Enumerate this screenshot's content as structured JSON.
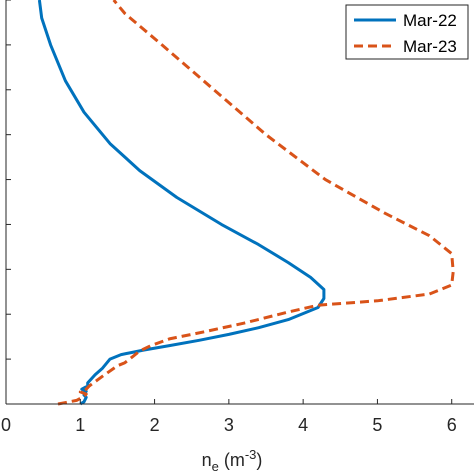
{
  "chart_data": {
    "type": "line",
    "xlabel_main": "n",
    "xlabel_sub": "e",
    "xlabel_unit_open": " (m",
    "xlabel_unit_sup": "-3",
    "xlabel_unit_close": ")",
    "xlim": [
      0,
      6.3
    ],
    "xticks": [
      0,
      1,
      2,
      3,
      4,
      5,
      6
    ],
    "xtick_labels": [
      "0",
      "1",
      "2",
      "3",
      "4",
      "5",
      "6"
    ],
    "ylim": [
      0,
      9
    ],
    "yticks": [
      0,
      1,
      2,
      3,
      4,
      5,
      6,
      7,
      8,
      9
    ],
    "grid": false,
    "legend_position": "top-right",
    "series": [
      {
        "name": "Mar-22",
        "color": "#0072BD",
        "style": "solid",
        "points": [
          [
            1.0,
            0.0
          ],
          [
            1.05,
            0.05
          ],
          [
            1.08,
            0.15
          ],
          [
            1.05,
            0.2
          ],
          [
            1.08,
            0.28
          ],
          [
            1.02,
            0.33
          ],
          [
            1.1,
            0.4
          ],
          [
            1.1,
            0.47
          ],
          [
            1.2,
            0.65
          ],
          [
            1.3,
            0.8
          ],
          [
            1.4,
            1.0
          ],
          [
            1.55,
            1.1
          ],
          [
            1.85,
            1.2
          ],
          [
            2.2,
            1.3
          ],
          [
            2.6,
            1.42
          ],
          [
            3.0,
            1.55
          ],
          [
            3.4,
            1.7
          ],
          [
            3.8,
            1.88
          ],
          [
            4.2,
            2.15
          ],
          [
            4.28,
            2.35
          ],
          [
            4.28,
            2.55
          ],
          [
            4.1,
            2.82
          ],
          [
            3.8,
            3.15
          ],
          [
            3.4,
            3.55
          ],
          [
            2.9,
            4.0
          ],
          [
            2.3,
            4.6
          ],
          [
            1.8,
            5.2
          ],
          [
            1.4,
            5.8
          ],
          [
            1.05,
            6.5
          ],
          [
            0.8,
            7.2
          ],
          [
            0.6,
            8.0
          ],
          [
            0.48,
            8.6
          ],
          [
            0.45,
            9.0
          ]
        ]
      },
      {
        "name": "Mar-23",
        "color": "#D95319",
        "style": "dashed",
        "points": [
          [
            0.7,
            0.0
          ],
          [
            0.95,
            0.08
          ],
          [
            1.05,
            0.17
          ],
          [
            1.08,
            0.22
          ],
          [
            1.0,
            0.27
          ],
          [
            1.08,
            0.33
          ],
          [
            1.12,
            0.4
          ],
          [
            1.3,
            0.62
          ],
          [
            1.5,
            0.85
          ],
          [
            1.6,
            0.92
          ],
          [
            1.7,
            1.05
          ],
          [
            1.8,
            1.18
          ],
          [
            1.95,
            1.3
          ],
          [
            2.2,
            1.45
          ],
          [
            2.7,
            1.62
          ],
          [
            3.2,
            1.8
          ],
          [
            3.8,
            2.05
          ],
          [
            4.2,
            2.2
          ],
          [
            5.0,
            2.3
          ],
          [
            5.7,
            2.45
          ],
          [
            6.0,
            2.65
          ],
          [
            6.02,
            2.95
          ],
          [
            6.0,
            3.35
          ],
          [
            5.7,
            3.75
          ],
          [
            5.1,
            4.25
          ],
          [
            4.3,
            5.0
          ],
          [
            3.5,
            6.0
          ],
          [
            2.8,
            7.0
          ],
          [
            2.1,
            8.0
          ],
          [
            1.6,
            8.7
          ],
          [
            1.45,
            9.0
          ]
        ]
      }
    ]
  }
}
